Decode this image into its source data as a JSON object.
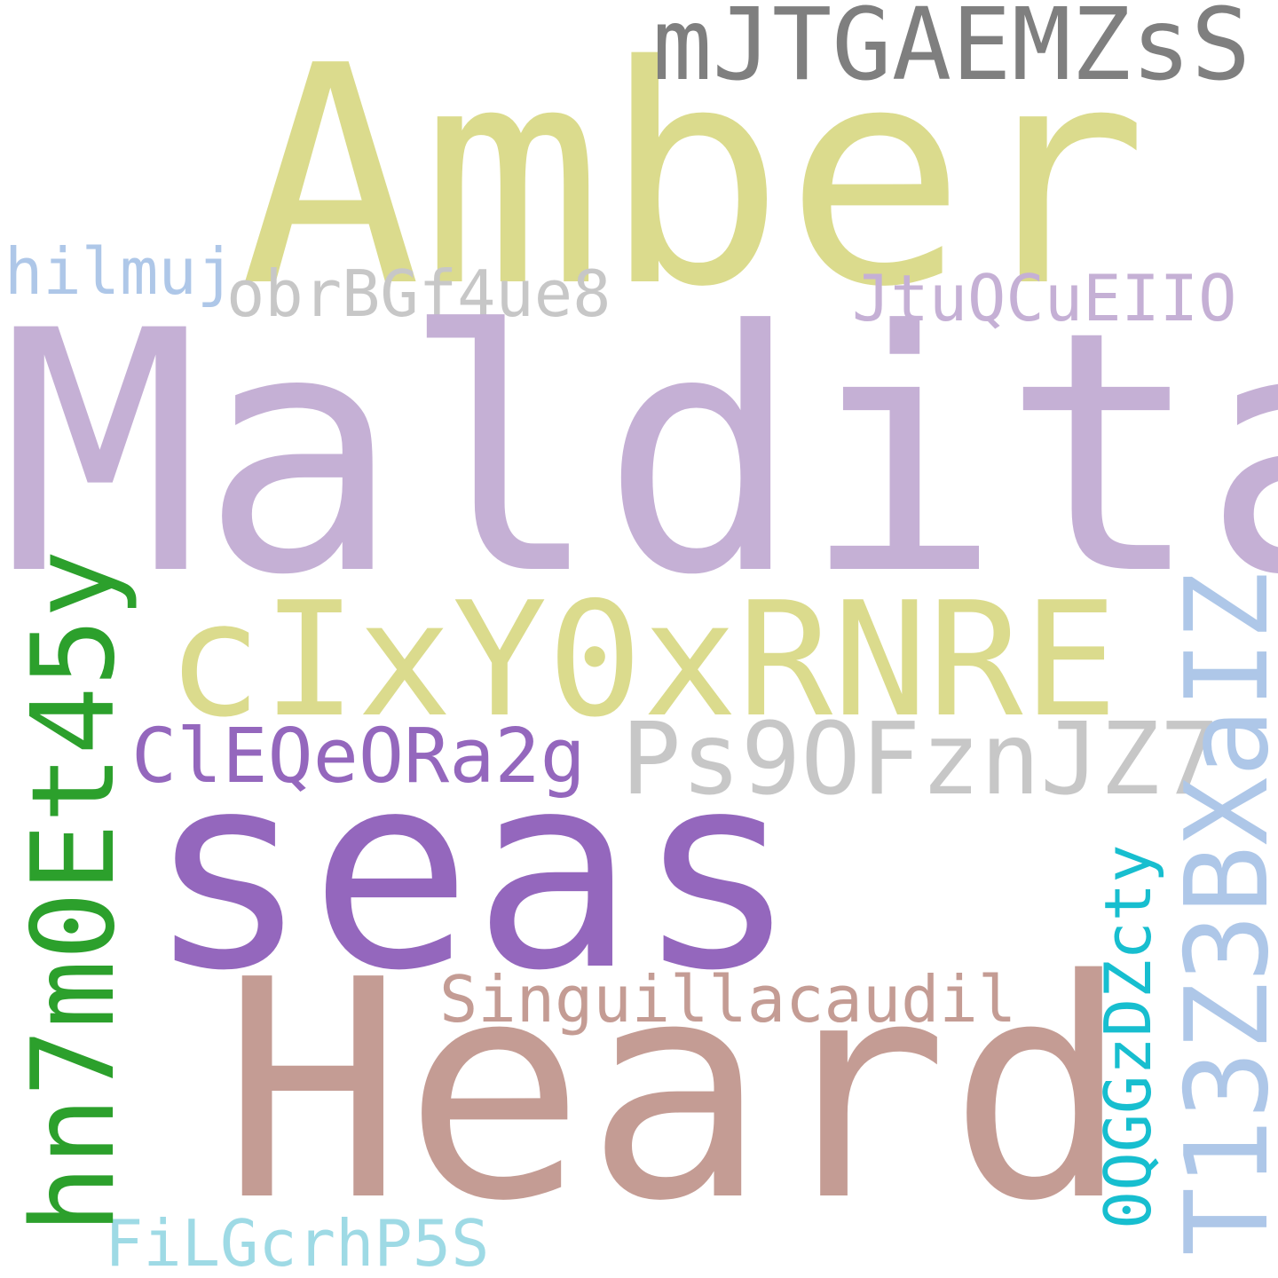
{
  "colors": {
    "background": "#ffffff",
    "khaki": "#dbdb8d",
    "gray": "#7f7f7f",
    "light_blue": "#aec7e8",
    "light_gray": "#c7c7c7",
    "lavender": "#c5b0d5",
    "purple": "#9467bd",
    "rose": "#c49c94",
    "green": "#2ca02c",
    "pale_cyan": "#9edae5",
    "cyan": "#17becf"
  },
  "words": {
    "amber": {
      "text": "Amber",
      "color": "#dbdb8d"
    },
    "mjtg": {
      "text": "mJTGAEMZsS",
      "color": "#7f7f7f"
    },
    "hilmuj": {
      "text": "hilmuj",
      "color": "#aec7e8"
    },
    "obr": {
      "text": "obrBGf4ue8",
      "color": "#c7c7c7"
    },
    "jtuq": {
      "text": "JtuQCuEIIO",
      "color": "#c5b0d5"
    },
    "maldita": {
      "text": "Maldita",
      "color": "#c5b0d5"
    },
    "cixy": {
      "text": "cIxY0xRNRE",
      "color": "#dbdb8d"
    },
    "ps90": {
      "text": "Ps9OFznJZ7",
      "color": "#c7c7c7"
    },
    "cleq": {
      "text": "ClEQeORa2g",
      "color": "#9467bd"
    },
    "seas": {
      "text": "seas",
      "color": "#9467bd"
    },
    "sing": {
      "text": "Singuillacaudil",
      "color": "#c49c94"
    },
    "heard": {
      "text": "Heard",
      "color": "#c49c94"
    },
    "filg": {
      "text": "FiLGcrhP5S",
      "color": "#9edae5"
    },
    "hn7m": {
      "text": "hn7m0Et45y",
      "color": "#2ca02c"
    },
    "t13z": {
      "text": "T13Z3BXaIZ",
      "color": "#aec7e8"
    },
    "0qgg": {
      "text": "0QGGzDZcty",
      "color": "#17becf"
    }
  }
}
